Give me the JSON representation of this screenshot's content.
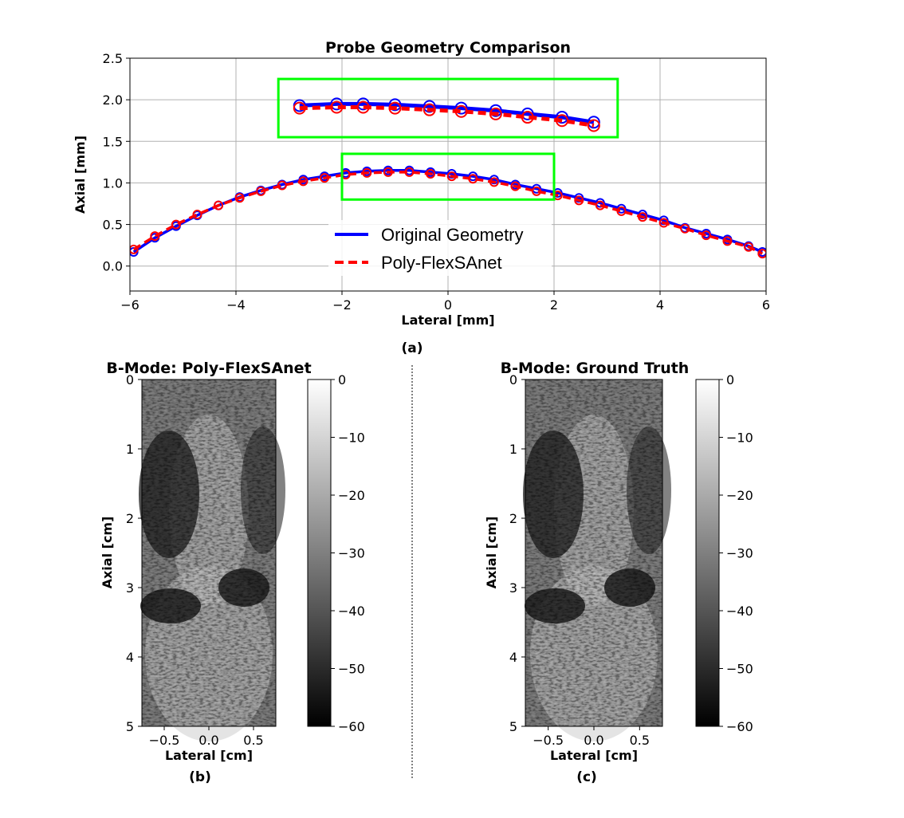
{
  "figure": {
    "panel_a_label": "(a)",
    "panel_b_label": "(b)",
    "panel_c_label": "(c)",
    "colors": {
      "original": "#0000ff",
      "prediction": "#ff0000",
      "zoom_box": "#00ff00",
      "grid": "#b0b0b0"
    }
  },
  "chart_data": [
    {
      "type": "line",
      "title": "Probe Geometry Comparison",
      "xlabel": "Lateral [mm]",
      "ylabel": "Axial [mm]",
      "xlim": [
        -6,
        6
      ],
      "ylim": [
        -0.3,
        2.5
      ],
      "xticks": [
        -6,
        -4,
        -2,
        0,
        2,
        4,
        6
      ],
      "xtick_labels": [
        "−6",
        "−4",
        "−2",
        "0",
        "2",
        "4",
        "6"
      ],
      "yticks": [
        0.0,
        0.5,
        1.0,
        1.5,
        2.0,
        2.5
      ],
      "ytick_labels": [
        "0.0",
        "0.5",
        "1.0",
        "1.5",
        "2.0",
        "2.5"
      ],
      "grid": true,
      "legend_position": "bottom-center",
      "series": [
        {
          "name": "Original Geometry",
          "style": "solid",
          "marker": "circle",
          "x": [
            -5.93,
            -5.53,
            -5.13,
            -4.73,
            -4.33,
            -3.93,
            -3.53,
            -3.13,
            -2.73,
            -2.33,
            -1.93,
            -1.53,
            -1.13,
            -0.73,
            -0.33,
            0.07,
            0.47,
            0.87,
            1.27,
            1.67,
            2.07,
            2.47,
            2.87,
            3.27,
            3.67,
            4.07,
            4.47,
            4.87,
            5.27,
            5.67,
            5.93
          ],
          "y": [
            0.17,
            0.34,
            0.48,
            0.61,
            0.73,
            0.83,
            0.91,
            0.98,
            1.04,
            1.08,
            1.12,
            1.14,
            1.15,
            1.15,
            1.13,
            1.11,
            1.08,
            1.04,
            0.98,
            0.93,
            0.88,
            0.82,
            0.76,
            0.69,
            0.62,
            0.55,
            0.46,
            0.39,
            0.32,
            0.24,
            0.17
          ]
        },
        {
          "name": "Poly-FlexSAnet",
          "style": "dashed",
          "marker": "circle",
          "x": [
            -5.93,
            -5.53,
            -5.13,
            -4.73,
            -4.33,
            -3.93,
            -3.53,
            -3.13,
            -2.73,
            -2.33,
            -1.93,
            -1.53,
            -1.13,
            -0.73,
            -0.33,
            0.07,
            0.47,
            0.87,
            1.27,
            1.67,
            2.07,
            2.47,
            2.87,
            3.27,
            3.67,
            4.07,
            4.47,
            4.87,
            5.27,
            5.67,
            5.93
          ],
          "y": [
            0.2,
            0.36,
            0.5,
            0.62,
            0.73,
            0.82,
            0.9,
            0.97,
            1.02,
            1.06,
            1.1,
            1.12,
            1.13,
            1.13,
            1.11,
            1.08,
            1.05,
            1.01,
            0.96,
            0.9,
            0.85,
            0.79,
            0.73,
            0.66,
            0.59,
            0.52,
            0.45,
            0.37,
            0.3,
            0.23,
            0.15
          ]
        }
      ],
      "zoom_boxes": [
        {
          "x": [
            -2.0,
            2.0
          ],
          "y": [
            0.8,
            1.35
          ]
        },
        {
          "x": [
            -3.2,
            3.2
          ],
          "y": [
            1.55,
            2.25
          ]
        }
      ],
      "inset_series": [
        {
          "name": "Original Geometry",
          "x": [
            -2.8,
            -2.1,
            -1.6,
            -1.0,
            -0.35,
            0.25,
            0.9,
            1.5,
            2.15,
            2.75
          ],
          "y": [
            1.93,
            1.95,
            1.95,
            1.94,
            1.92,
            1.9,
            1.87,
            1.83,
            1.79,
            1.73
          ]
        },
        {
          "name": "Poly-FlexSAnet",
          "x": [
            -2.8,
            -2.1,
            -1.6,
            -1.0,
            -0.35,
            0.25,
            0.9,
            1.5,
            2.15,
            2.75
          ],
          "y": [
            1.9,
            1.91,
            1.91,
            1.9,
            1.88,
            1.86,
            1.83,
            1.79,
            1.75,
            1.69
          ]
        }
      ]
    },
    {
      "type": "heatmap",
      "title": "B-Mode: Poly-FlexSAnet",
      "xlabel": "Lateral [cm]",
      "ylabel": "Axial [cm]",
      "xlim": [
        -0.75,
        0.75
      ],
      "ylim": [
        5,
        0
      ],
      "xticks": [
        -0.5,
        0.0,
        0.5
      ],
      "xtick_labels": [
        "−0.5",
        "0.0",
        "0.5"
      ],
      "yticks": [
        0,
        1,
        2,
        3,
        4,
        5
      ],
      "ytick_labels": [
        "0",
        "1",
        "2",
        "3",
        "4",
        "5"
      ],
      "colormap": "gray",
      "colorbar_range": [
        -60,
        0
      ],
      "colorbar_ticks": [
        0,
        -10,
        -20,
        -30,
        -40,
        -50,
        -60
      ],
      "colorbar_labels": [
        "0",
        "−10",
        "−20",
        "−30",
        "−40",
        "−50",
        "−60"
      ]
    },
    {
      "type": "heatmap",
      "title": "B-Mode: Ground Truth",
      "xlabel": "Lateral [cm]",
      "ylabel": "Axial [cm]",
      "xlim": [
        -0.75,
        0.75
      ],
      "ylim": [
        5,
        0
      ],
      "xticks": [
        -0.5,
        0.0,
        0.5
      ],
      "xtick_labels": [
        "−0.5",
        "0.0",
        "0.5"
      ],
      "yticks": [
        0,
        1,
        2,
        3,
        4,
        5
      ],
      "ytick_labels": [
        "0",
        "1",
        "2",
        "3",
        "4",
        "5"
      ],
      "colormap": "gray",
      "colorbar_range": [
        -60,
        0
      ],
      "colorbar_ticks": [
        0,
        -10,
        -20,
        -30,
        -40,
        -50,
        -60
      ],
      "colorbar_labels": [
        "0",
        "−10",
        "−20",
        "−30",
        "−40",
        "−50",
        "−60"
      ]
    }
  ]
}
